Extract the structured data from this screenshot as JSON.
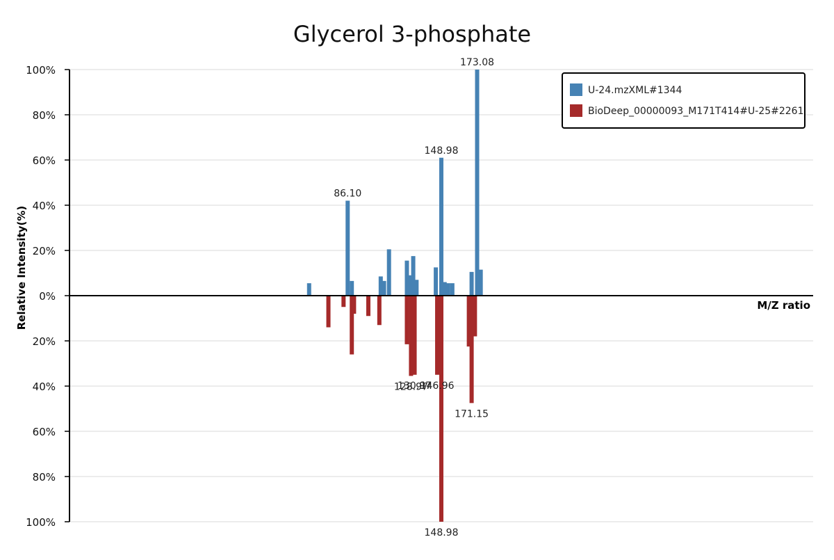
{
  "chart_data": {
    "type": "bar",
    "title": "Glycerol 3-phosphate",
    "xlabel": "M/Z ratio",
    "ylabel": "Relative Intensity(%)",
    "xlim": [
      0,
      270
    ],
    "ylim": [
      -100,
      100
    ],
    "grid": true,
    "legend_position": "top-right",
    "y_ticks": [
      {
        "value": 100,
        "label": "100%"
      },
      {
        "value": 80,
        "label": "80%"
      },
      {
        "value": 60,
        "label": "60%"
      },
      {
        "value": 40,
        "label": "40%"
      },
      {
        "value": 20,
        "label": "20%"
      },
      {
        "value": 0,
        "label": "0%"
      },
      {
        "value": -20,
        "label": "20%"
      },
      {
        "value": -40,
        "label": "40%"
      },
      {
        "value": -60,
        "label": "60%"
      },
      {
        "value": -80,
        "label": "80%"
      },
      {
        "value": -100,
        "label": "100%"
      }
    ],
    "series": [
      {
        "name": "U-24.mzXML#1344",
        "color": "#4682b4",
        "direction": "up",
        "points": [
          {
            "mz": 87.0,
            "intensity": 5.5
          },
          {
            "mz": 101.0,
            "intensity": 42.0,
            "label": "86.10"
          },
          {
            "mz": 102.5,
            "intensity": 6.5
          },
          {
            "mz": 113.0,
            "intensity": 8.5
          },
          {
            "mz": 114.2,
            "intensity": 6.5
          },
          {
            "mz": 116.0,
            "intensity": 20.5
          },
          {
            "mz": 122.5,
            "intensity": 15.5
          },
          {
            "mz": 123.7,
            "intensity": 9.0
          },
          {
            "mz": 124.8,
            "intensity": 17.5
          },
          {
            "mz": 126.0,
            "intensity": 7.0
          },
          {
            "mz": 133.0,
            "intensity": 12.5
          },
          {
            "mz": 135.0,
            "intensity": 61.0,
            "label": "148.98"
          },
          {
            "mz": 136.2,
            "intensity": 6.0
          },
          {
            "mz": 137.5,
            "intensity": 5.5
          },
          {
            "mz": 139.0,
            "intensity": 5.5
          },
          {
            "mz": 146.0,
            "intensity": 10.5
          },
          {
            "mz": 148.0,
            "intensity": 100.0,
            "label": "173.08"
          },
          {
            "mz": 149.3,
            "intensity": 11.5
          }
        ]
      },
      {
        "name": "BioDeep_00000093_M171T414#U-25#2261",
        "color": "#a52a2a",
        "direction": "down",
        "points": [
          {
            "mz": 94.0,
            "intensity": 14.0
          },
          {
            "mz": 99.5,
            "intensity": 5.0
          },
          {
            "mz": 102.5,
            "intensity": 26.0
          },
          {
            "mz": 103.3,
            "intensity": 8.0
          },
          {
            "mz": 108.5,
            "intensity": 9.0
          },
          {
            "mz": 112.5,
            "intensity": 13.0
          },
          {
            "mz": 122.5,
            "intensity": 21.5
          },
          {
            "mz": 124.0,
            "intensity": 35.5,
            "label": "128.97"
          },
          {
            "mz": 125.3,
            "intensity": 35.0,
            "label": "130.97"
          },
          {
            "mz": 133.5,
            "intensity": 35.0,
            "label": "146.96"
          },
          {
            "mz": 135.0,
            "intensity": 100.0,
            "label": "148.98"
          },
          {
            "mz": 145.0,
            "intensity": 22.5
          },
          {
            "mz": 146.0,
            "intensity": 47.5,
            "label": "171.15"
          },
          {
            "mz": 147.2,
            "intensity": 18.0
          }
        ]
      }
    ]
  }
}
